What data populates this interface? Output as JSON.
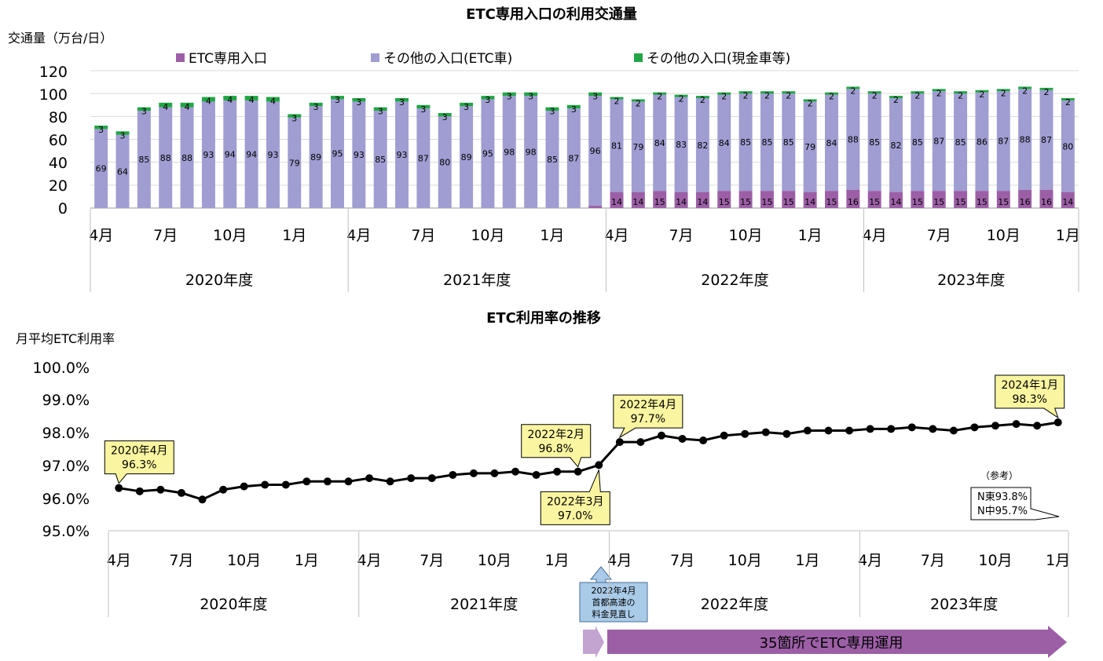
{
  "chart_data": [
    {
      "type": "bar",
      "stacked": true,
      "title": "ETC専用入口の利用交通量",
      "ylabel": "交通量（万台/日）",
      "ylim": [
        0,
        120
      ],
      "yticks": [
        "0",
        "20",
        "40",
        "60",
        "80",
        "100",
        "120"
      ],
      "grid": true,
      "legend_position": "top",
      "month_labels": [
        "4月",
        "",
        "",
        "7月",
        "",
        "",
        "10月",
        "",
        "",
        "1月",
        "",
        "",
        "4月",
        "",
        "",
        "7月",
        "",
        "",
        "10月",
        "",
        "",
        "1月",
        "",
        "",
        "4月",
        "",
        "",
        "7月",
        "",
        "",
        "10月",
        "",
        "",
        "1月",
        "",
        "",
        "4月",
        "",
        "",
        "7月",
        "",
        "",
        "10月",
        "",
        "",
        "1月"
      ],
      "year_groups": [
        {
          "label": "2020年度",
          "count": 12
        },
        {
          "label": "2021年度",
          "count": 12
        },
        {
          "label": "2022年度",
          "count": 12
        },
        {
          "label": "2023年度",
          "count": 10
        }
      ],
      "series": [
        {
          "name": "ETC専用入口",
          "color": "#9c5fa6",
          "values": [
            0,
            0,
            0,
            0,
            0,
            0,
            0,
            0,
            0,
            0,
            0,
            0,
            0,
            0,
            0,
            0,
            0,
            0,
            0,
            0,
            0,
            0,
            0,
            2,
            14,
            14,
            15,
            14,
            14,
            15,
            15,
            15,
            15,
            14,
            15,
            16,
            15,
            14,
            15,
            15,
            15,
            15,
            15,
            16,
            16,
            14
          ]
        },
        {
          "name": "その他の入口(ETC車)",
          "color": "#9f9dd1",
          "values": [
            69,
            64,
            85,
            88,
            88,
            93,
            94,
            94,
            93,
            79,
            89,
            95,
            93,
            85,
            93,
            87,
            80,
            89,
            95,
            98,
            98,
            85,
            87,
            96,
            81,
            79,
            84,
            83,
            82,
            84,
            85,
            85,
            85,
            79,
            84,
            88,
            85,
            82,
            85,
            87,
            85,
            86,
            87,
            88,
            87,
            80
          ]
        },
        {
          "name": "その他の入口(現金車等)",
          "color": "#22a546",
          "values": [
            3,
            3,
            3,
            4,
            4,
            4,
            4,
            4,
            4,
            3,
            3,
            3,
            3,
            3,
            3,
            3,
            3,
            3,
            3,
            3,
            3,
            3,
            3,
            3,
            2,
            2,
            2,
            2,
            2,
            2,
            2,
            2,
            2,
            2,
            2,
            2,
            2,
            2,
            2,
            2,
            2,
            2,
            2,
            2,
            2,
            2
          ]
        }
      ]
    },
    {
      "type": "line",
      "title": "ETC利用率の推移",
      "ylabel": "月平均ETC利用率",
      "ylim": [
        95.0,
        100.0
      ],
      "yticks": [
        "95.0%",
        "96.0%",
        "97.0%",
        "98.0%",
        "99.0%",
        "100.0%"
      ],
      "grid": false,
      "month_labels": [
        "4月",
        "",
        "",
        "7月",
        "",
        "",
        "10月",
        "",
        "",
        "1月",
        "",
        "",
        "4月",
        "",
        "",
        "7月",
        "",
        "",
        "10月",
        "",
        "",
        "1月",
        "",
        "",
        "4月",
        "",
        "",
        "7月",
        "",
        "",
        "10月",
        "",
        "",
        "1月",
        "",
        "",
        "4月",
        "",
        "",
        "7月",
        "",
        "",
        "10月",
        "",
        "",
        "1月"
      ],
      "year_groups": [
        {
          "label": "2020年度",
          "count": 12
        },
        {
          "label": "2021年度",
          "count": 12
        },
        {
          "label": "2022年度",
          "count": 12
        },
        {
          "label": "2023年度",
          "count": 10
        }
      ],
      "series": [
        {
          "name": "",
          "color": "#000000",
          "values": [
            96.3,
            96.2,
            96.25,
            96.15,
            95.95,
            96.25,
            96.35,
            96.4,
            96.4,
            96.5,
            96.5,
            96.5,
            96.6,
            96.5,
            96.6,
            96.6,
            96.7,
            96.75,
            96.75,
            96.8,
            96.7,
            96.8,
            96.8,
            97.0,
            97.7,
            97.7,
            97.9,
            97.8,
            97.75,
            97.9,
            97.95,
            98.0,
            97.95,
            98.05,
            98.05,
            98.05,
            98.1,
            98.1,
            98.15,
            98.1,
            98.05,
            98.15,
            98.2,
            98.25,
            98.2,
            98.3
          ]
        }
      ],
      "callouts": [
        {
          "index": 0,
          "line1": "2020年4月",
          "line2": "96.3%",
          "pos": "above"
        },
        {
          "index": 22,
          "line1": "2022年2月",
          "line2": "96.8%",
          "pos": "above"
        },
        {
          "index": 23,
          "line1": "2022年3月",
          "line2": "97.0%",
          "pos": "below"
        },
        {
          "index": 24,
          "line1": "2022年4月",
          "line2": "97.7%",
          "pos": "above"
        },
        {
          "index": 45,
          "line1": "2024年1月",
          "line2": "98.3%",
          "pos": "above"
        }
      ],
      "reference": {
        "title": "（参考）",
        "line1": "N東93.8%",
        "line2": "N中95.7%"
      },
      "event": {
        "line1": "2022年4月",
        "line2": "首都高速の",
        "line3": "料金見直し"
      },
      "banner": "35箇所でETC専用運用"
    }
  ],
  "colors": {
    "etc_only": "#9c5fa6",
    "etc_other": "#9f9dd1",
    "cash": "#22a546",
    "callout_fill": "#faf5a0",
    "event_fill": "#a9cbe8",
    "banner_fill": "#9c5fa6",
    "banner_light": "#c3a3d0"
  }
}
